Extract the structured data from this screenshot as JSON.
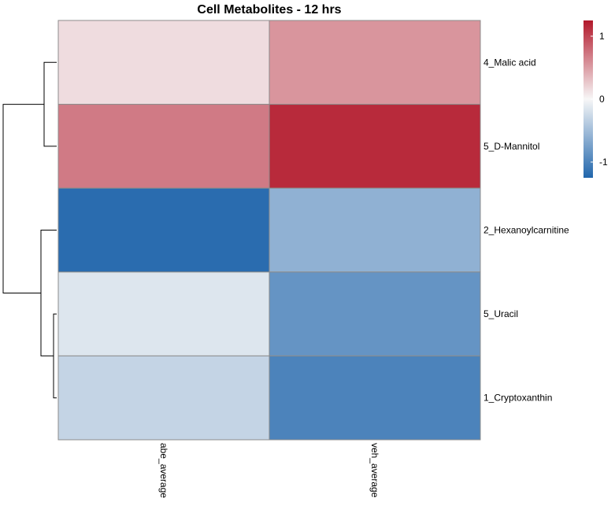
{
  "chart_data": {
    "type": "heatmap",
    "title": "Cell Metabolites - 12 hrs",
    "rows": [
      "4_Malic acid",
      "5_D-Mannitol",
      "2_Hexanoylcarnitine",
      "5_Uracil",
      "1_Cryptoxanthin"
    ],
    "columns": [
      "abe_average",
      "veh_average"
    ],
    "values": [
      [
        0.15,
        0.55
      ],
      [
        0.7,
        1.15
      ],
      [
        -1.2,
        -0.6
      ],
      [
        -0.15,
        -0.85
      ],
      [
        -0.3,
        -1.0
      ]
    ],
    "color_scale": {
      "min": -1.25,
      "max": 1.25,
      "ticks": [
        1,
        0,
        -1
      ],
      "low_color": "#2166AC",
      "mid_color": "#F7F7F7",
      "high_color": "#B2182B"
    },
    "row_dendrogram": true,
    "legend_position": "top-right"
  }
}
